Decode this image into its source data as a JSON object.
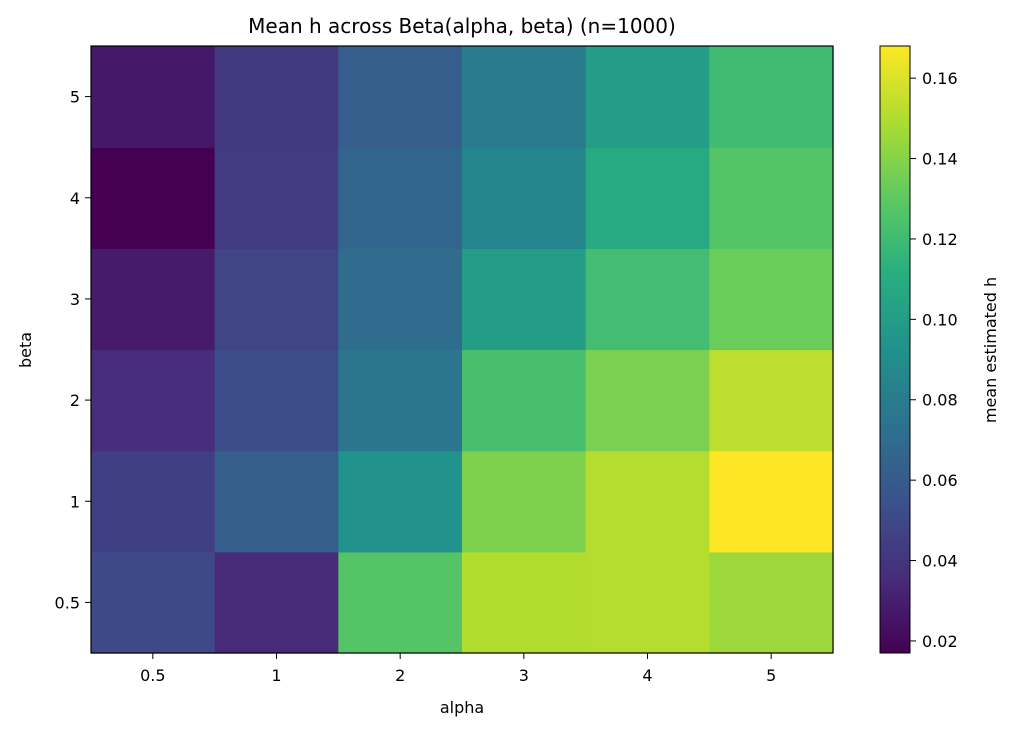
{
  "chart_data": {
    "type": "heatmap",
    "title": "Mean h across Beta(alpha, beta) (n=1000)",
    "xlabel": "alpha",
    "ylabel": "beta",
    "x_categories": [
      "0.5",
      "1",
      "2",
      "3",
      "4",
      "5"
    ],
    "y_categories": [
      "0.5",
      "1",
      "2",
      "3",
      "4",
      "5"
    ],
    "values": [
      [
        0.05,
        0.035,
        0.127,
        0.15,
        0.151,
        0.145
      ],
      [
        0.045,
        0.062,
        0.093,
        0.138,
        0.151,
        0.168
      ],
      [
        0.036,
        0.052,
        0.076,
        0.123,
        0.137,
        0.153
      ],
      [
        0.028,
        0.048,
        0.07,
        0.1,
        0.121,
        0.133
      ],
      [
        0.017,
        0.043,
        0.066,
        0.085,
        0.108,
        0.127
      ],
      [
        0.027,
        0.042,
        0.062,
        0.079,
        0.1,
        0.12
      ]
    ],
    "colorbar": {
      "label": "mean estimated h",
      "vmin": 0.017,
      "vmax": 0.168,
      "ticks": [
        "0.02",
        "0.04",
        "0.06",
        "0.08",
        "0.10",
        "0.12",
        "0.14",
        "0.16"
      ],
      "colormap": "viridis"
    }
  }
}
